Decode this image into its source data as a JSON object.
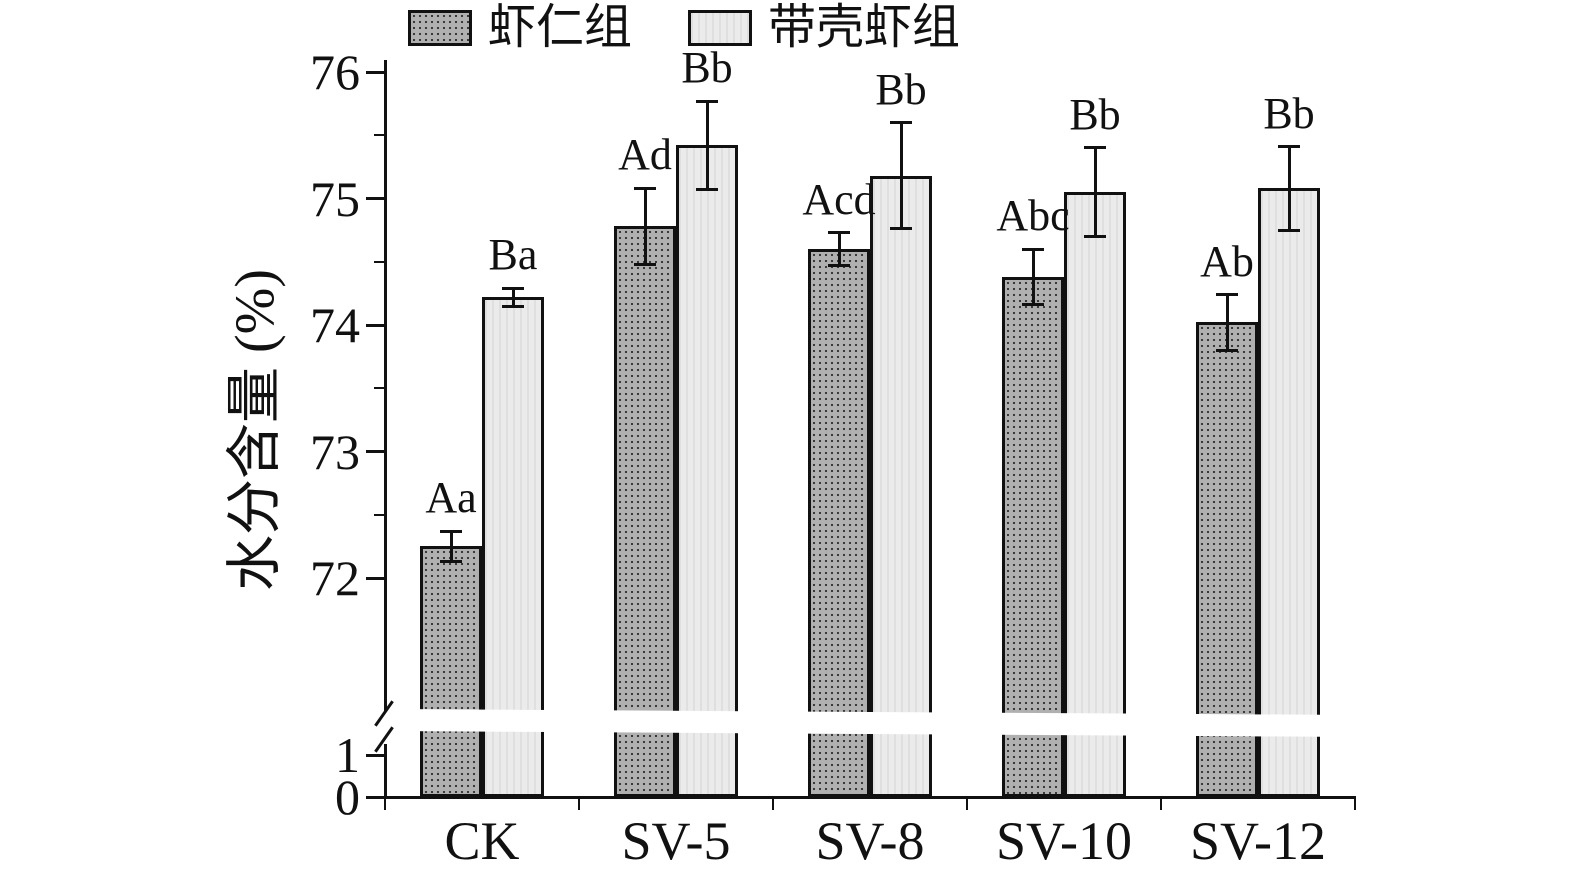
{
  "figure": {
    "ylabel": "水分含量 (%)"
  },
  "chart_data": {
    "type": "bar",
    "title": "",
    "xlabel": "",
    "ylabel": "水分含量 (%)",
    "categories": [
      "CK",
      "SV-5",
      "SV-8",
      "SV-10",
      "SV-12"
    ],
    "series": [
      {
        "name": "虾仁组",
        "values": [
          72.25,
          74.78,
          74.6,
          74.38,
          74.02
        ],
        "errors": [
          0.12,
          0.3,
          0.13,
          0.22,
          0.22
        ],
        "sig_labels": [
          "Aa",
          "Ad",
          "Acd",
          "Abc",
          "Ab"
        ],
        "fill": "#b0b0b0",
        "pattern": "dots"
      },
      {
        "name": "带壳虾组",
        "values": [
          74.22,
          75.42,
          75.18,
          75.05,
          75.08
        ],
        "errors": [
          0.07,
          0.35,
          0.42,
          0.35,
          0.33
        ],
        "sig_labels": [
          "Ba",
          "Bb",
          "Bb",
          "Bb",
          "Bb"
        ],
        "fill": "#ebebeb",
        "pattern": "plain"
      }
    ],
    "y_axis": {
      "upper_ticks": [
        72,
        73,
        74,
        75,
        76
      ],
      "upper_minor_ticks": [
        72.5,
        73.5,
        74.5,
        75.5
      ],
      "lower_ticks": [
        0,
        1
      ],
      "break_between": [
        1,
        72
      ],
      "upper_range": [
        72,
        76
      ],
      "lower_range": [
        0,
        1
      ]
    },
    "axis_break": true,
    "legend_position": "top",
    "grid": false,
    "colors": {
      "dark_bar": "#b0b0b0",
      "light_bar": "#ebebeb",
      "axis": "#111111"
    }
  }
}
